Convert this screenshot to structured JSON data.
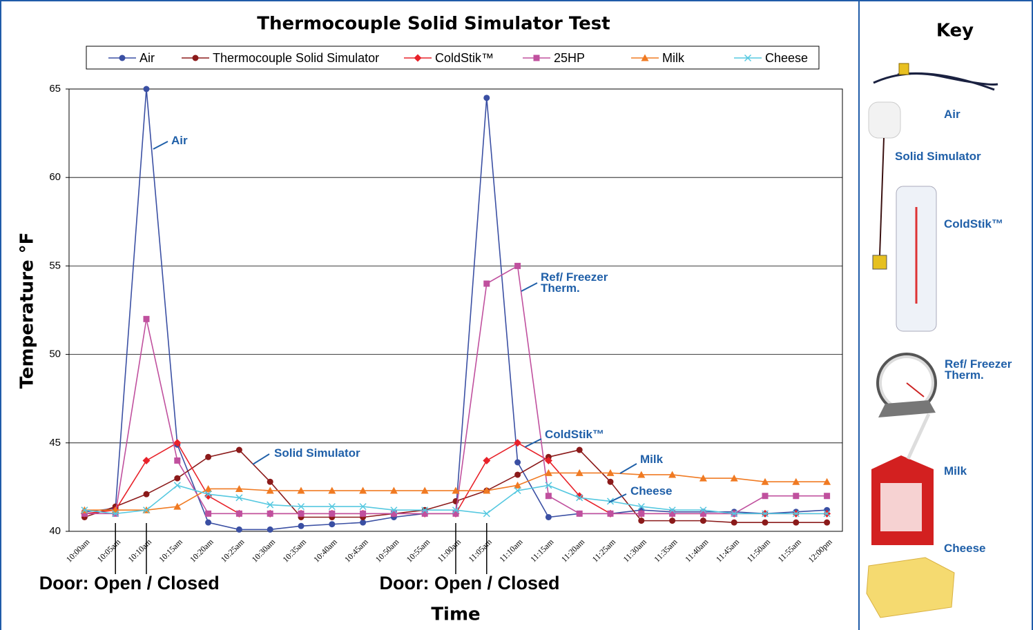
{
  "chart_data": {
    "type": "line",
    "title": "Thermocouple Solid Simulator Test",
    "x_label": "Time",
    "y_label": "Temperature °F",
    "categories": [
      "10:00am",
      "10:05am",
      "10:10am",
      "10:15am",
      "10:20am",
      "10:25am",
      "10:30am",
      "10:35am",
      "10:40am",
      "10:45am",
      "10:50am",
      "10:55am",
      "11:00am",
      "11:05am",
      "11:10am",
      "11:15am",
      "11:20am",
      "11:25am",
      "11:30am",
      "11:35am",
      "11:40am",
      "11:45am",
      "11:50am",
      "11:55am",
      "12:00pm"
    ],
    "series": [
      {
        "name": "Air",
        "color": "#3a4fa3",
        "marker": "circle",
        "values": [
          41.1,
          41.3,
          65,
          44.9,
          40.5,
          40.1,
          40.1,
          40.3,
          40.4,
          40.5,
          40.8,
          41.0,
          41.0,
          64.5,
          43.9,
          40.8,
          41.0,
          41.0,
          41.2,
          41.1,
          41.1,
          41.1,
          41.0,
          41.1,
          41.2
        ]
      },
      {
        "name": "Thermocouple Solid Simulator",
        "color": "#8b1a1a",
        "marker": "circle",
        "values": [
          40.8,
          41.4,
          42.1,
          43.0,
          44.2,
          44.6,
          42.8,
          40.8,
          40.8,
          40.8,
          41.0,
          41.2,
          41.7,
          42.3,
          43.2,
          44.2,
          44.6,
          42.8,
          40.6,
          40.6,
          40.6,
          40.5,
          40.5,
          40.5,
          40.5
        ]
      },
      {
        "name": "ColdStik™",
        "color": "#e8222a",
        "marker": "diamond",
        "values": [
          41.0,
          41.2,
          44.0,
          45.0,
          42.0,
          41.0,
          41.0,
          41.0,
          41.0,
          41.0,
          41.0,
          41.0,
          41.0,
          44.0,
          45.0,
          44.0,
          42.0,
          41.0,
          41.0,
          41.0,
          41.0,
          41.0,
          41.0,
          41.0,
          41.0
        ]
      },
      {
        "name": "25HP",
        "color": "#c0509e",
        "marker": "square",
        "values": [
          41.0,
          41.0,
          52.0,
          44.0,
          41.0,
          41.0,
          41.0,
          41.0,
          41.0,
          41.0,
          41.0,
          41.0,
          41.0,
          54.0,
          55.0,
          42.0,
          41.0,
          41.0,
          41.0,
          41.0,
          41.0,
          41.0,
          42.0,
          42.0,
          42.0
        ]
      },
      {
        "name": "Milk",
        "color": "#f07a22",
        "marker": "triangle",
        "values": [
          41.2,
          41.2,
          41.2,
          41.4,
          42.4,
          42.4,
          42.3,
          42.3,
          42.3,
          42.3,
          42.3,
          42.3,
          42.3,
          42.3,
          42.6,
          43.3,
          43.3,
          43.3,
          43.2,
          43.2,
          43.0,
          43.0,
          42.8,
          42.8,
          42.8
        ]
      },
      {
        "name": "Cheese",
        "color": "#55c8e0",
        "marker": "x",
        "values": [
          41.2,
          41.0,
          41.2,
          42.6,
          42.1,
          41.9,
          41.5,
          41.4,
          41.4,
          41.4,
          41.2,
          41.2,
          41.2,
          41.0,
          42.3,
          42.6,
          41.9,
          41.7,
          41.4,
          41.2,
          41.2,
          41.0,
          41.0,
          41.0,
          41.0
        ]
      }
    ],
    "ylim": [
      40,
      65
    ],
    "yticks": [
      40,
      45,
      50,
      55,
      60,
      65
    ],
    "grid": true,
    "legend": "top",
    "annotations": [
      "Air",
      "Solid Simulator",
      "Ref/ Freezer Therm.",
      "ColdStik™",
      "Milk",
      "Cheese"
    ],
    "door_markers": [
      {
        "label": "Door: Open / Closed",
        "open": "10:05am",
        "closed": "10:10am"
      },
      {
        "label": "Door: Open / Closed",
        "open": "11:00am",
        "closed": "11:05am"
      }
    ]
  },
  "key": {
    "title": "Key",
    "items": [
      "Air",
      "Solid Simulator",
      "ColdStik™",
      "Ref/ Freezer Therm.",
      "Milk",
      "Cheese"
    ]
  }
}
